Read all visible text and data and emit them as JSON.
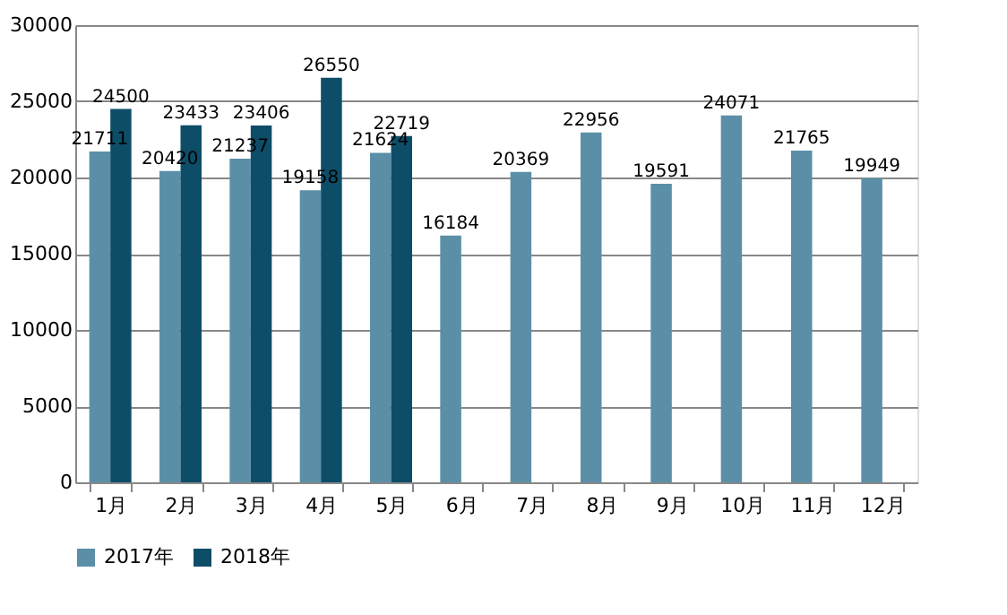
{
  "chart_data": {
    "type": "bar",
    "categories": [
      "1月",
      "2月",
      "3月",
      "4月",
      "5月",
      "6月",
      "7月",
      "8月",
      "9月",
      "10月",
      "11月",
      "12月"
    ],
    "series": [
      {
        "name": "2017年",
        "color": "#5b8fa8",
        "values": [
          21711,
          20420,
          21237,
          19158,
          21624,
          16184,
          20369,
          22956,
          19591,
          24071,
          21765,
          19949
        ]
      },
      {
        "name": "2018年",
        "color": "#0e4d68",
        "values": [
          24500,
          23433,
          23406,
          26550,
          22719,
          null,
          null,
          null,
          null,
          null,
          null,
          null
        ]
      }
    ],
    "ylim": [
      0,
      30000
    ],
    "yticks": [
      0,
      5000,
      10000,
      15000,
      20000,
      25000,
      30000
    ],
    "grid": "y",
    "legend": "bottom",
    "data_labels": true
  }
}
